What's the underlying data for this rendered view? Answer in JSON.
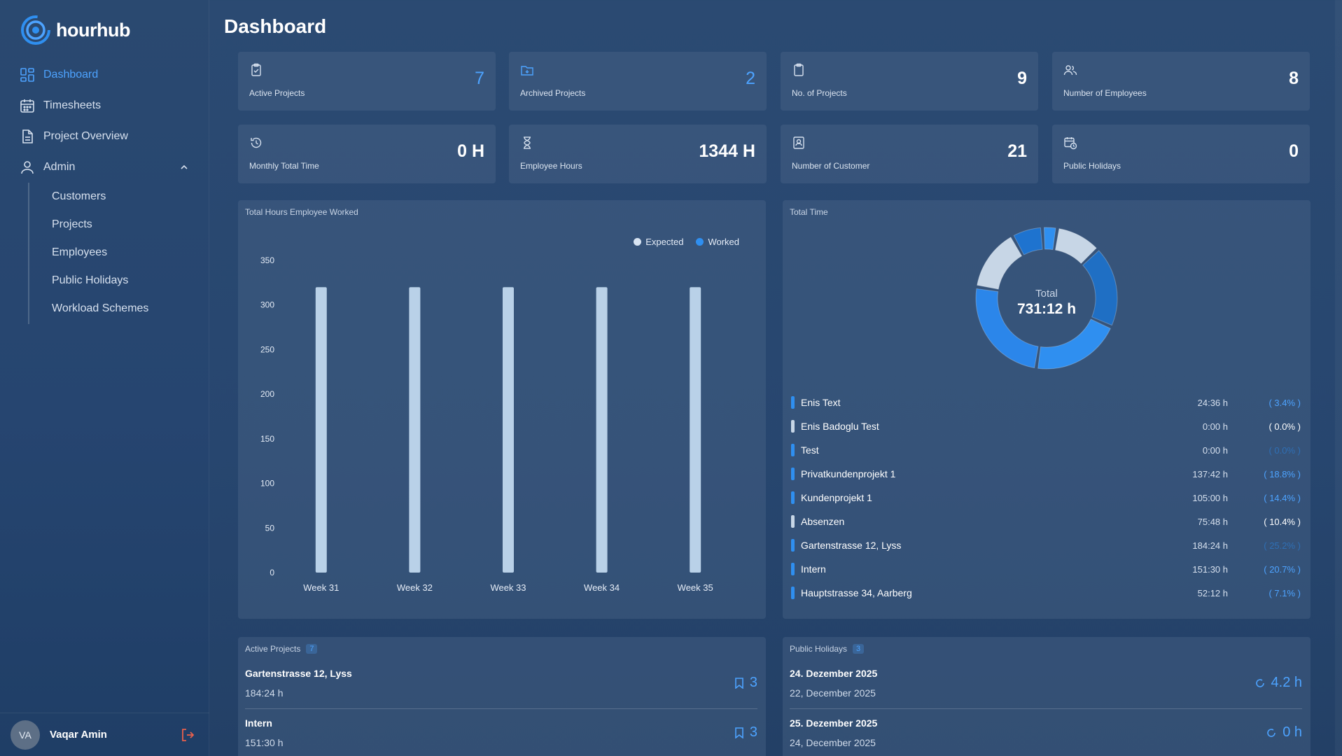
{
  "app": {
    "name": "hourhub"
  },
  "sidebar": {
    "items": [
      {
        "label": "Dashboard",
        "icon": "dashboard-icon",
        "active": true
      },
      {
        "label": "Timesheets",
        "icon": "calendar-icon"
      },
      {
        "label": "Project Overview",
        "icon": "document-icon"
      },
      {
        "label": "Admin",
        "icon": "user-icon",
        "expanded": true
      }
    ],
    "admin_items": [
      "Customers",
      "Projects",
      "Employees",
      "Public Holidays",
      "Workload Schemes"
    ],
    "user": {
      "initials": "VA",
      "name": "Vaqar Amin"
    }
  },
  "page": {
    "title": "Dashboard"
  },
  "stats": [
    {
      "label": "Active Projects",
      "value": "7",
      "icon": "clipboard-check-icon",
      "accent": true
    },
    {
      "label": "Archived Projects",
      "value": "2",
      "icon": "folder-icon",
      "accent": true
    },
    {
      "label": "No. of Projects",
      "value": "9",
      "icon": "clipboard-icon",
      "accent": false
    },
    {
      "label": "Number of Employees",
      "value": "8",
      "icon": "users-icon",
      "accent": false
    },
    {
      "label": "Monthly Total Time",
      "value": "0 H",
      "icon": "history-icon",
      "accent": false
    },
    {
      "label": "Employee Hours",
      "value": "1344 H",
      "icon": "hourglass-icon",
      "accent": false
    },
    {
      "label": "Number of Customer",
      "value": "21",
      "icon": "contact-icon",
      "accent": false
    },
    {
      "label": "Public Holidays",
      "value": "0",
      "icon": "calendar-clock-icon",
      "accent": false
    }
  ],
  "hours_chart": {
    "title": "Total Hours Employee Worked",
    "legend": [
      "Expected",
      "Worked"
    ]
  },
  "chart_data": {
    "type": "bar",
    "categories": [
      "Week 31",
      "Week 32",
      "Week 33",
      "Week 34",
      "Week 35"
    ],
    "series": [
      {
        "name": "Expected",
        "values": [
          320,
          320,
          320,
          320,
          320
        ],
        "color": "#b9d1e8"
      },
      {
        "name": "Worked",
        "values": [
          0,
          0,
          0,
          0,
          0
        ],
        "color": "#2f8ff0"
      }
    ],
    "yticks": [
      0,
      50,
      100,
      150,
      200,
      250,
      300,
      350
    ],
    "ylim": [
      0,
      350
    ]
  },
  "total_time": {
    "title": "Total Time",
    "center_label": "Total",
    "center_value": "731:12 h",
    "rows": [
      {
        "name": "Enis Text",
        "hours": "24:36 h",
        "pct": "( 3.4% )",
        "pct_value": 3.4,
        "color": "#2f8ff0",
        "pct_color": "#4da3ff"
      },
      {
        "name": "Enis Badoglu Test",
        "hours": "0:00 h",
        "pct": "( 0.0% )",
        "pct_value": 0.0,
        "color": "#c7d6e6",
        "pct_color": "#ffffff"
      },
      {
        "name": "Test",
        "hours": "0:00 h",
        "pct": "( 0.0% )",
        "pct_value": 0.0,
        "color": "#2f8ff0",
        "pct_color": "#2f6fb5"
      },
      {
        "name": "Privatkundenprojekt 1",
        "hours": "137:42 h",
        "pct": "( 18.8% )",
        "pct_value": 18.8,
        "color": "#2f8ff0",
        "pct_color": "#4da3ff"
      },
      {
        "name": "Kundenprojekt 1",
        "hours": "105:00 h",
        "pct": "( 14.4% )",
        "pct_value": 14.4,
        "color": "#2f8ff0",
        "pct_color": "#4da3ff"
      },
      {
        "name": "Absenzen",
        "hours": "75:48 h",
        "pct": "( 10.4% )",
        "pct_value": 10.4,
        "color": "#c7d6e6",
        "pct_color": "#ffffff"
      },
      {
        "name": "Gartenstrasse 12, Lyss",
        "hours": "184:24 h",
        "pct": "( 25.2% )",
        "pct_value": 25.2,
        "color": "#2f8ff0",
        "pct_color": "#2f6fb5"
      },
      {
        "name": "Intern",
        "hours": "151:30 h",
        "pct": "( 20.7% )",
        "pct_value": 20.7,
        "color": "#2f8ff0",
        "pct_color": "#4da3ff"
      },
      {
        "name": "Hauptstrasse 34, Aarberg",
        "hours": "52:12 h",
        "pct": "( 7.1% )",
        "pct_value": 7.1,
        "color": "#2f8ff0",
        "pct_color": "#4da3ff"
      }
    ]
  },
  "active_projects": {
    "title": "Active Projects",
    "count": "7",
    "items": [
      {
        "name": "Gartenstrasse 12, Lyss",
        "hours": "184:24 h",
        "count": "3"
      },
      {
        "name": "Intern",
        "hours": "151:30 h",
        "count": "3"
      }
    ]
  },
  "public_holidays": {
    "title": "Public Holidays",
    "count": "3",
    "items": [
      {
        "name": "24. Dezember 2025",
        "date": "22, December 2025",
        "value": "4.2 h"
      },
      {
        "name": "25. Dezember 2025",
        "date": "24, December 2025",
        "value": "0 h"
      }
    ]
  },
  "colors": {
    "accent": "#4da3ff",
    "bar_expected": "#b9d1e8",
    "bar_worked": "#2f8ff0"
  }
}
